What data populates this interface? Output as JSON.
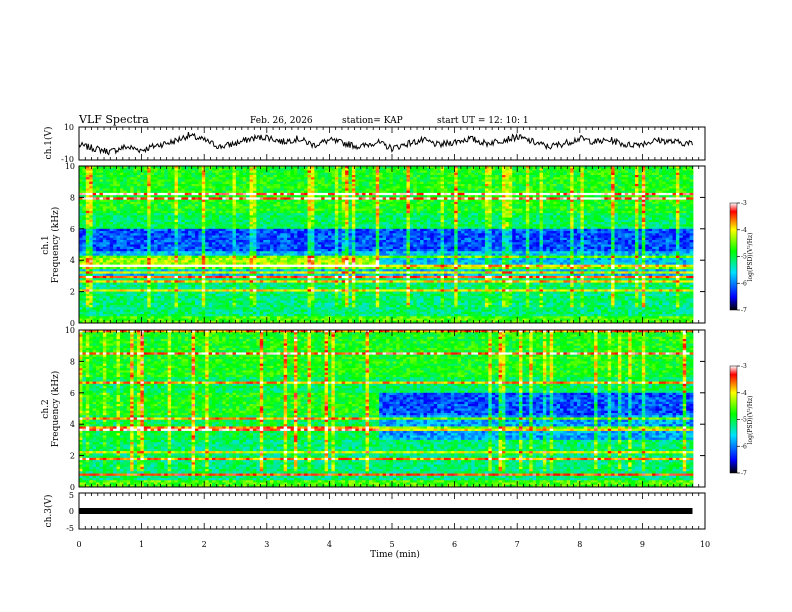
{
  "header": {
    "title": "VLF Spectra",
    "date": "Feb. 26, 2026",
    "station": "station= KAP",
    "start": "start  UT =   12: 10: 1"
  },
  "chart_data": [
    {
      "type": "line",
      "panel": "ch1",
      "ylabel": "ch.1(V)",
      "ylim": [
        -10,
        10
      ],
      "yticks": [
        "10",
        "-10"
      ],
      "xlim": [
        0,
        10
      ],
      "description_series": "waveform amplitude",
      "series": [
        {
          "x": [
            0,
            0.25,
            0.5,
            0.75,
            1,
            1.25,
            1.5,
            1.75,
            2,
            2.25,
            2.5,
            2.75,
            3,
            3.25,
            3.5,
            3.75,
            4,
            4.25,
            4.5,
            4.75,
            5,
            5.25,
            5.5,
            5.75,
            6,
            6.25,
            6.5,
            6.75,
            7,
            7.25,
            7.5,
            7.75,
            8,
            8.25,
            8.5,
            8.75,
            9,
            9.25,
            9.5,
            9.75,
            9.8
          ],
          "values": [
            -1,
            -3,
            -5,
            -2,
            -4,
            -1,
            1,
            5,
            2,
            -2,
            0,
            3,
            4,
            1,
            3,
            -1,
            2,
            0,
            -2,
            1,
            -3,
            0,
            2,
            -1,
            1,
            3,
            0,
            2,
            4,
            1,
            -2,
            0,
            3,
            1,
            2,
            -1,
            0,
            2,
            1,
            0,
            0
          ]
        }
      ]
    },
    {
      "type": "heatmap",
      "panel": "ch2_spectrogram",
      "ylabel": "ch.1\nFrequency (kHz)",
      "ylim": [
        0,
        10
      ],
      "yticks": [
        "0",
        "2",
        "4",
        "6",
        "8",
        "10"
      ],
      "xlim": [
        0,
        10
      ],
      "colorbar": {
        "label": "log(PSD)(V²/Hz)",
        "range": [
          -7,
          -3
        ],
        "ticks": [
          "-3",
          "-4",
          "-5",
          "-6",
          "-7"
        ]
      }
    },
    {
      "type": "heatmap",
      "panel": "ch3_spectrogram",
      "ylabel": "ch.2\nFrequency (kHz)",
      "ylim": [
        0,
        10
      ],
      "yticks": [
        "0",
        "2",
        "4",
        "6",
        "8",
        "10"
      ],
      "xlim": [
        0,
        10
      ],
      "colorbar": {
        "label": "log(PSD)(V²/Hz)",
        "range": [
          -7,
          -3
        ],
        "ticks": [
          "-3",
          "-4",
          "-5",
          "-6",
          "-7"
        ]
      }
    },
    {
      "type": "line",
      "panel": "ch3",
      "ylabel": "ch.3(V)",
      "ylim": [
        -5,
        5
      ],
      "yticks": [
        "5",
        "0",
        "-5"
      ],
      "xlim": [
        0,
        10
      ],
      "series": [
        {
          "x": [
            0,
            9.8
          ],
          "values": [
            0,
            0
          ]
        }
      ]
    }
  ],
  "xaxis": {
    "label": "Time  (min)",
    "ticks": [
      "0",
      "1",
      "2",
      "3",
      "4",
      "5",
      "6",
      "7",
      "8",
      "9",
      "10"
    ]
  },
  "colors": {
    "line": "#000000",
    "background": "#ffffff"
  }
}
